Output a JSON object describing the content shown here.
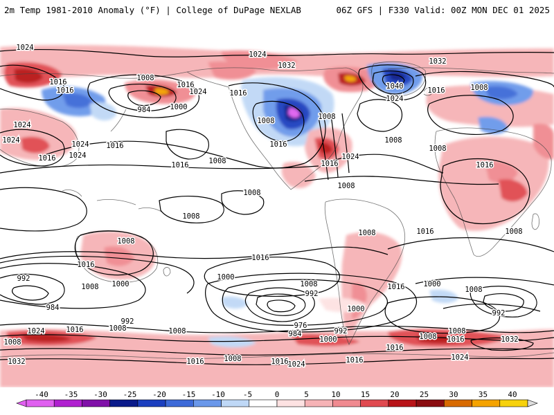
{
  "header": {
    "title_left": "2m Temp 1981-2010 Anomaly (°F) | College of DuPage NEXLAB",
    "title_right": "06Z GFS | F330 Valid: 00Z MON DEC 01 2025"
  },
  "colors": {
    "ocean_bg": "#ffffff",
    "warm_light": "#fbcfd2",
    "warm_mid": "#f08a90",
    "warm_strong": "#d8262a",
    "warm_deep": "#a81014",
    "hot_orange": "#f5a300",
    "hot_yellow": "#f7d20c",
    "cold_light": "#bfd8f6",
    "cold_mid": "#5c8fe8",
    "cold_strong": "#1b3fbf",
    "cold_deep": "#0a1a8a",
    "cold_purple": "#b020e0",
    "isobar": "#000000",
    "coast": "#444444"
  },
  "colorbar": {
    "labels": [
      "-40",
      "-35",
      "-30",
      "-25",
      "-20",
      "-15",
      "-10",
      "-5",
      "0",
      "5",
      "10",
      "15",
      "20",
      "25",
      "30",
      "35",
      "40"
    ],
    "colors": [
      "#e060f0",
      "#b020d0",
      "#8010a8",
      "#0a1a8a",
      "#1b3fbf",
      "#3d6ad8",
      "#6a98ea",
      "#bfd8f6",
      "#ffffff",
      "#fde2e2",
      "#f6b3b6",
      "#f08a90",
      "#e04a50",
      "#b81418",
      "#8a0c10",
      "#d86a00",
      "#f5a300",
      "#f7d20c"
    ]
  },
  "isobar_labels": [
    {
      "text": "1024",
      "id": "p-nw-1024"
    },
    {
      "text": "1016",
      "id": "p-asia-1016a"
    },
    {
      "text": "1016",
      "id": "p-asia-1016b"
    },
    {
      "text": "1008",
      "id": "p-aleut-1008"
    },
    {
      "text": "1016",
      "id": "p-aleut-1016"
    },
    {
      "text": "1024",
      "id": "p-aleut-1024"
    },
    {
      "text": "984",
      "id": "p-aleut-984"
    },
    {
      "text": "1000",
      "id": "p-aleut-1000"
    },
    {
      "text": "1024",
      "id": "p-arctic-1024"
    },
    {
      "text": "1032",
      "id": "p-arctic-1032"
    },
    {
      "text": "1016",
      "id": "p-can-1016"
    },
    {
      "text": "1008",
      "id": "p-can-1008"
    },
    {
      "text": "1016",
      "id": "p-us-1016"
    },
    {
      "text": "1008",
      "id": "p-us-1008"
    },
    {
      "text": "1024",
      "id": "p-atl-1024"
    },
    {
      "text": "1016",
      "id": "p-atl-1016"
    },
    {
      "text": "1040",
      "id": "p-grn-1040"
    },
    {
      "text": "1032",
      "id": "p-grn-1032"
    },
    {
      "text": "1024",
      "id": "p-grn-1024"
    },
    {
      "text": "1016",
      "id": "p-euro-1016"
    },
    {
      "text": "1008",
      "id": "p-euro-1008"
    },
    {
      "text": "1008",
      "id": "p-natl-1008"
    },
    {
      "text": "1008",
      "id": "p-afr-1008"
    },
    {
      "text": "1016",
      "id": "p-afr-1016"
    },
    {
      "text": "1024",
      "id": "p-asia-1024"
    },
    {
      "text": "1016",
      "id": "p-ind-1016"
    },
    {
      "text": "1024",
      "id": "p-w-1024"
    },
    {
      "text": "1024",
      "id": "p-w-1024b"
    },
    {
      "text": "1024",
      "id": "p-chn-1024"
    },
    {
      "text": "1016",
      "id": "p-chn-1016"
    },
    {
      "text": "1016",
      "id": "p-pac-1016"
    },
    {
      "text": "1008",
      "id": "p-pac-1008"
    },
    {
      "text": "1008",
      "id": "p-pac-1008b"
    },
    {
      "text": "1008",
      "id": "p-pac-1008c"
    },
    {
      "text": "1008",
      "id": "p-aus-1008"
    },
    {
      "text": "1016",
      "id": "p-aus-1016"
    },
    {
      "text": "1016",
      "id": "p-spac-1016"
    },
    {
      "text": "1008",
      "id": "p-sam-1008"
    },
    {
      "text": "1008",
      "id": "p-sam-1008b"
    },
    {
      "text": "1016",
      "id": "p-satl-1016"
    },
    {
      "text": "1016",
      "id": "p-satl-1016b"
    },
    {
      "text": "1008",
      "id": "p-saf-1008"
    },
    {
      "text": "992",
      "id": "p-so-992a"
    },
    {
      "text": "1008",
      "id": "p-so-1008a"
    },
    {
      "text": "1000",
      "id": "p-so-1000a"
    },
    {
      "text": "984",
      "id": "p-so-984a"
    },
    {
      "text": "992",
      "id": "p-so-992b"
    },
    {
      "text": "1000",
      "id": "p-so-1000b"
    },
    {
      "text": "1008",
      "id": "p-so-1008b"
    },
    {
      "text": "992",
      "id": "p-so-992c"
    },
    {
      "text": "976",
      "id": "p-so-976"
    },
    {
      "text": "984",
      "id": "p-so-984b"
    },
    {
      "text": "1000",
      "id": "p-so-1000c"
    },
    {
      "text": "992",
      "id": "p-so-992d"
    },
    {
      "text": "1000",
      "id": "p-so-1000d"
    },
    {
      "text": "1008",
      "id": "p-so-1008c"
    },
    {
      "text": "1000",
      "id": "p-so-1000e"
    },
    {
      "text": "1008",
      "id": "p-so-1008d"
    },
    {
      "text": "992",
      "id": "p-so-992e"
    },
    {
      "text": "1008",
      "id": "p-so-1008e"
    },
    {
      "text": "1016",
      "id": "p-so-1016a"
    },
    {
      "text": "1024",
      "id": "p-so-1024a"
    },
    {
      "text": "1016",
      "id": "p-so-1016b"
    },
    {
      "text": "1008",
      "id": "p-so-1008f"
    },
    {
      "text": "1008",
      "id": "p-so-1008g"
    },
    {
      "text": "1016",
      "id": "p-so-1016c"
    },
    {
      "text": "1032",
      "id": "p-so-1032a"
    },
    {
      "text": "1016",
      "id": "p-ant-1016a"
    },
    {
      "text": "1008",
      "id": "p-ant-1008a"
    },
    {
      "text": "1024",
      "id": "p-ant-1024a"
    },
    {
      "text": "1016",
      "id": "p-ant-1016b"
    },
    {
      "text": "1024",
      "id": "p-ant-1024b"
    },
    {
      "text": "1032",
      "id": "p-ant-1032b"
    },
    {
      "text": "1016",
      "id": "p-ant-1016c"
    },
    {
      "text": "1008",
      "id": "p-ant-1008b"
    }
  ]
}
